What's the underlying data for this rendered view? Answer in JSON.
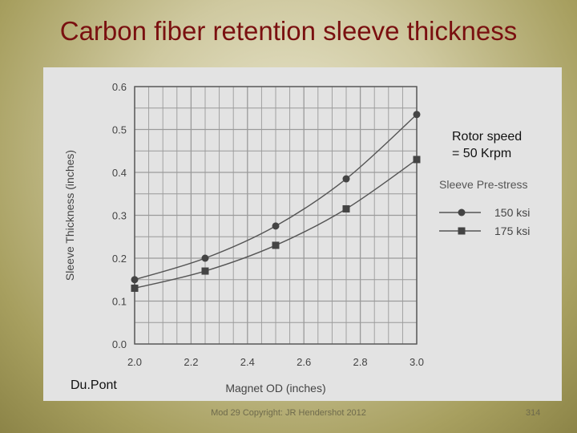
{
  "slide": {
    "title": "Carbon fiber retention sleeve thickness",
    "footer": "Mod 29 Copyright: JR Hendershot 2012",
    "page_number": "314"
  },
  "annotations": {
    "speed_line1": "Rotor speed",
    "speed_line2": "= 50 Krpm",
    "source": "Du.Pont"
  },
  "colors": {
    "title": "#7a1010",
    "chart_background": "#e3e3e3",
    "grid": "#9a9a9a",
    "series": "#555555"
  },
  "chart_data": {
    "type": "line",
    "xlabel": "Magnet OD (inches)",
    "ylabel": "Sleeve Thickness (inches)",
    "xlim": [
      2.0,
      3.0
    ],
    "ylim": [
      0.0,
      0.6
    ],
    "xticks": [
      "2.0",
      "2.2",
      "2.4",
      "2.6",
      "2.8",
      "3.0"
    ],
    "yticks": [
      "0.0",
      "0.1",
      "0.2",
      "0.3",
      "0.4",
      "0.5",
      "0.6"
    ],
    "grid": true,
    "legend_title": "Sleeve Pre-stress",
    "legend_position": "right",
    "series": [
      {
        "name": "150 ksi",
        "marker": "circle",
        "x": [
          2.0,
          2.25,
          2.5,
          2.75,
          3.0
        ],
        "values": [
          0.15,
          0.2,
          0.275,
          0.385,
          0.535
        ]
      },
      {
        "name": "175 ksi",
        "marker": "square",
        "x": [
          2.0,
          2.25,
          2.5,
          2.75,
          3.0
        ],
        "values": [
          0.13,
          0.17,
          0.23,
          0.315,
          0.43
        ]
      }
    ]
  }
}
